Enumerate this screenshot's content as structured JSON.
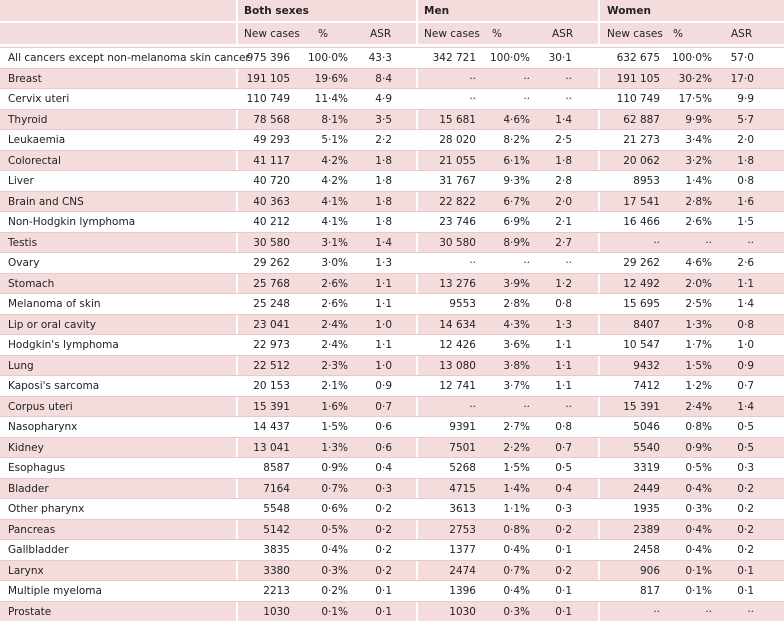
{
  "table": {
    "groups": [
      "Both sexes",
      "Men",
      "Women"
    ],
    "subheaders": [
      "New cases",
      "%",
      "ASR",
      "New cases",
      "%",
      "ASR",
      "New cases",
      "%",
      "ASR"
    ],
    "rows": [
      [
        "All cancers except non-melanoma skin cancer",
        "975 396",
        "100·0%",
        "43·3",
        "342 721",
        "100·0%",
        "30·1",
        "632 675",
        "100·0%",
        "57·0"
      ],
      [
        "Breast",
        "191 105",
        "19·6%",
        "8·4",
        "··",
        "··",
        "··",
        "191 105",
        "30·2%",
        "17·0"
      ],
      [
        "Cervix uteri",
        "110 749",
        "11·4%",
        "4·9",
        "··",
        "··",
        "··",
        "110 749",
        "17·5%",
        "9·9"
      ],
      [
        "Thyroid",
        "78 568",
        "8·1%",
        "3·5",
        "15 681",
        "4·6%",
        "1·4",
        "62 887",
        "9·9%",
        "5·7"
      ],
      [
        "Leukaemia",
        "49 293",
        "5·1%",
        "2·2",
        "28 020",
        "8·2%",
        "2·5",
        "21 273",
        "3·4%",
        "2·0"
      ],
      [
        "Colorectal",
        "41 117",
        "4·2%",
        "1·8",
        "21 055",
        "6·1%",
        "1·8",
        "20 062",
        "3·2%",
        "1·8"
      ],
      [
        "Liver",
        "40 720",
        "4·2%",
        "1·8",
        "31 767",
        "9·3%",
        "2·8",
        "8953",
        "1·4%",
        "0·8"
      ],
      [
        "Brain and CNS",
        "40 363",
        "4·1%",
        "1·8",
        "22 822",
        "6·7%",
        "2·0",
        "17 541",
        "2·8%",
        "1·6"
      ],
      [
        "Non-Hodgkin lymphoma",
        "40 212",
        "4·1%",
        "1·8",
        "23 746",
        "6·9%",
        "2·1",
        "16 466",
        "2·6%",
        "1·5"
      ],
      [
        "Testis",
        "30 580",
        "3·1%",
        "1·4",
        "30 580",
        "8·9%",
        "2·7",
        "··",
        "··",
        "··"
      ],
      [
        "Ovary",
        "29 262",
        "3·0%",
        "1·3",
        "··",
        "··",
        "··",
        "29 262",
        "4·6%",
        "2·6"
      ],
      [
        "Stomach",
        "25 768",
        "2·6%",
        "1·1",
        "13 276",
        "3·9%",
        "1·2",
        "12 492",
        "2·0%",
        "1·1"
      ],
      [
        "Melanoma of skin",
        "25 248",
        "2·6%",
        "1·1",
        "9553",
        "2·8%",
        "0·8",
        "15 695",
        "2·5%",
        "1·4"
      ],
      [
        "Lip or oral cavity",
        "23 041",
        "2·4%",
        "1·0",
        "14 634",
        "4·3%",
        "1·3",
        "8407",
        "1·3%",
        "0·8"
      ],
      [
        "Hodgkin's lymphoma",
        "22 973",
        "2·4%",
        "1·1",
        "12 426",
        "3·6%",
        "1·1",
        "10 547",
        "1·7%",
        "1·0"
      ],
      [
        "Lung",
        "22 512",
        "2·3%",
        "1·0",
        "13 080",
        "3·8%",
        "1·1",
        "9432",
        "1·5%",
        "0·9"
      ],
      [
        "Kaposi's sarcoma",
        "20 153",
        "2·1%",
        "0·9",
        "12 741",
        "3·7%",
        "1·1",
        "7412",
        "1·2%",
        "0·7"
      ],
      [
        "Corpus uteri",
        "15 391",
        "1·6%",
        "0·7",
        "··",
        "··",
        "··",
        "15 391",
        "2·4%",
        "1·4"
      ],
      [
        "Nasopharynx",
        "14 437",
        "1·5%",
        "0·6",
        "9391",
        "2·7%",
        "0·8",
        "5046",
        "0·8%",
        "0·5"
      ],
      [
        "Kidney",
        "13 041",
        "1·3%",
        "0·6",
        "7501",
        "2·2%",
        "0·7",
        "5540",
        "0·9%",
        "0·5"
      ],
      [
        "Esophagus",
        "8587",
        "0·9%",
        "0·4",
        "5268",
        "1·5%",
        "0·5",
        "3319",
        "0·5%",
        "0·3"
      ],
      [
        "Bladder",
        "7164",
        "0·7%",
        "0·3",
        "4715",
        "1·4%",
        "0·4",
        "2449",
        "0·4%",
        "0·2"
      ],
      [
        "Other pharynx",
        "5548",
        "0·6%",
        "0·2",
        "3613",
        "1·1%",
        "0·3",
        "1935",
        "0·3%",
        "0·2"
      ],
      [
        "Pancreas",
        "5142",
        "0·5%",
        "0·2",
        "2753",
        "0·8%",
        "0·2",
        "2389",
        "0·4%",
        "0·2"
      ],
      [
        "Gallbladder",
        "3835",
        "0·4%",
        "0·2",
        "1377",
        "0·4%",
        "0·1",
        "2458",
        "0·4%",
        "0·2"
      ],
      [
        "Larynx",
        "3380",
        "0·3%",
        "0·2",
        "2474",
        "0·7%",
        "0·2",
        "906",
        "0·1%",
        "0·1"
      ],
      [
        "Multiple myeloma",
        "2213",
        "0·2%",
        "0·1",
        "1396",
        "0·4%",
        "0·1",
        "817",
        "0·1%",
        "0·1"
      ],
      [
        "Prostate",
        "1030",
        "0·1%",
        "0·1",
        "1030",
        "0·3%",
        "0·1",
        "··",
        "··",
        "··"
      ]
    ]
  }
}
